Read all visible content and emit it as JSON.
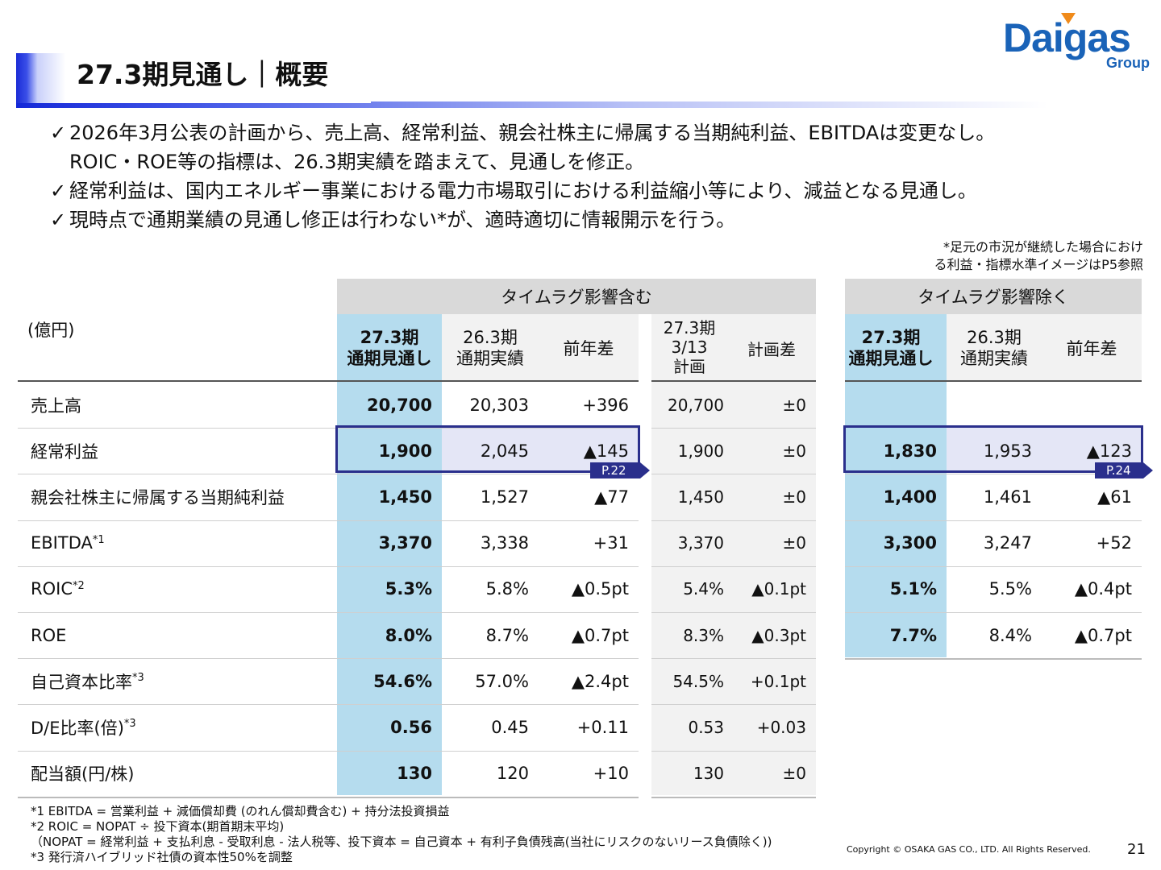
{
  "header": {
    "title": "27.3期見通し｜概要"
  },
  "logo": {
    "word": "Daigas",
    "group": "Group"
  },
  "bullets": [
    "2026年3月公表の計画から、売上高、経常利益、親会社株主に帰属する当期純利益、EBITDAは変更なし。",
    "ROIC・ROE等の指標は、26.3期実績を踏まえて、見通しを修正。",
    "経常利益は、国内エネルギー事業における電力市場取引における利益縮小等により、減益となる見通し。",
    "現時点で通期業績の見通し修正は行わない*が、適時適切に情報開示を行う。"
  ],
  "check_mark": "✓",
  "note_top": {
    "line1": "*足元の市況が継続した場合におけ",
    "line2": "る利益・指標水準イメージはP5参照"
  },
  "table": {
    "unit": "(億円)",
    "group1": "タイムラグ影響含む",
    "group2": "タイムラグ影響除く",
    "col_forecast": {
      "l1": "27.3期",
      "l2": "通期見通し"
    },
    "col_actual": {
      "l1": "26.3期",
      "l2": "通期実績"
    },
    "col_yoy": "前年差",
    "col_plan": {
      "l1": "27.3期",
      "l2": "3/13",
      "l3": "計画"
    },
    "col_plandiff": "計画差",
    "tag1": "P.22",
    "tag2": "P.24",
    "rows": [
      {
        "label": "売上高",
        "sup": "",
        "f": "20,700",
        "a": "20,303",
        "y": "+396",
        "p": "20,700",
        "pd": "±0",
        "f2": "",
        "a2": "",
        "y2": ""
      },
      {
        "label": "経常利益",
        "sup": "",
        "f": "1,900",
        "a": "2,045",
        "y": "▲145",
        "p": "1,900",
        "pd": "±0",
        "f2": "1,830",
        "a2": "1,953",
        "y2": "▲123"
      },
      {
        "label": "親会社株主に帰属する当期純利益",
        "sup": "",
        "f": "1,450",
        "a": "1,527",
        "y": "▲77",
        "p": "1,450",
        "pd": "±0",
        "f2": "1,400",
        "a2": "1,461",
        "y2": "▲61"
      },
      {
        "label": "EBITDA",
        "sup": "*1",
        "f": "3,370",
        "a": "3,338",
        "y": "+31",
        "p": "3,370",
        "pd": "±0",
        "f2": "3,300",
        "a2": "3,247",
        "y2": "+52"
      },
      {
        "label": "ROIC",
        "sup": "*2",
        "f": "5.3%",
        "a": "5.8%",
        "y": "▲0.5pt",
        "p": "5.4%",
        "pd": "▲0.1pt",
        "f2": "5.1%",
        "a2": "5.5%",
        "y2": "▲0.4pt"
      },
      {
        "label": "ROE",
        "sup": "",
        "f": "8.0%",
        "a": "8.7%",
        "y": "▲0.7pt",
        "p": "8.3%",
        "pd": "▲0.3pt",
        "f2": "7.7%",
        "a2": "8.4%",
        "y2": "▲0.7pt"
      },
      {
        "label": "自己資本比率",
        "sup": "*3",
        "f": "54.6%",
        "a": "57.0%",
        "y": "▲2.4pt",
        "p": "54.5%",
        "pd": "+0.1pt",
        "f2": "",
        "a2": "",
        "y2": ""
      },
      {
        "label": "D/E比率(倍)",
        "sup": "*3",
        "f": "0.56",
        "a": "0.45",
        "y": "+0.11",
        "p": "0.53",
        "pd": "+0.03",
        "f2": "",
        "a2": "",
        "y2": ""
      },
      {
        "label": "配当額(円/株)",
        "sup": "",
        "f": "130",
        "a": "120",
        "y": "+10",
        "p": "130",
        "pd": "±0",
        "f2": "",
        "a2": "",
        "y2": ""
      }
    ]
  },
  "footnotes": [
    "*1  EBITDA =  営業利益 + 減価償却費 (のれん償却費含む) + 持分法投資損益",
    "*2  ROIC = NOPAT ÷ 投下資本(期首期末平均)",
    "      （NOPAT = 経常利益 + 支払利息 - 受取利息 - 法人税等、投下資本 = 自己資本 + 有利子負債残高(当社にリスクのないリース負債除く))",
    "*3  発行済ハイブリッド社債の資本性50%を調整"
  ],
  "copyright": "Copyright © OSAKA GAS CO., LTD. All Rights Reserved.",
  "page_number": "21"
}
